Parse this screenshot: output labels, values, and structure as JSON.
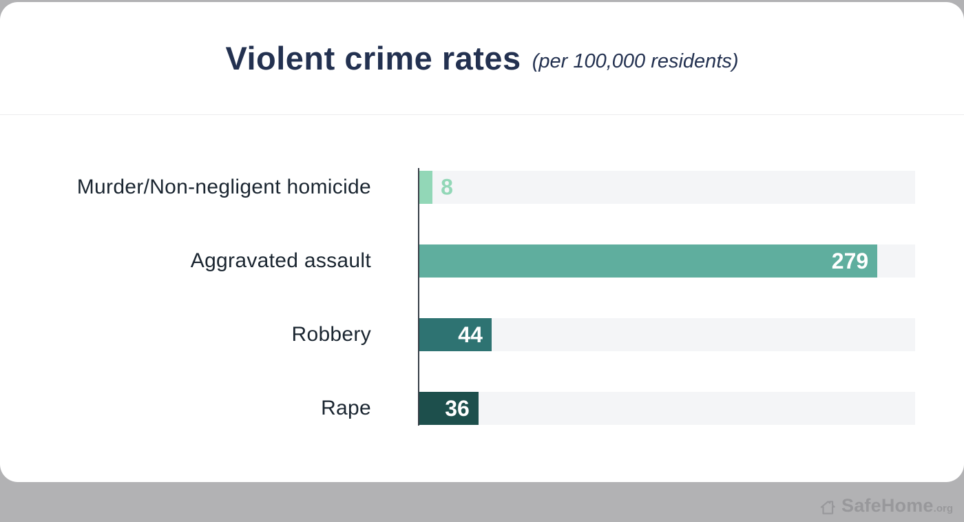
{
  "title": {
    "main": "Violent crime rates",
    "subtitle": "(per 100,000 residents)"
  },
  "chart_data": {
    "type": "bar",
    "orientation": "horizontal",
    "title": "Violent crime rates (per 100,000 residents)",
    "categories": [
      "Murder/Non-negligent homicide",
      "Aggravated assault",
      "Robbery",
      "Rape"
    ],
    "values": [
      8,
      279,
      44,
      36
    ],
    "xlim": [
      0,
      302
    ],
    "bar_colors": [
      "#92d7b7",
      "#5fae9e",
      "#2e7372",
      "#1d4f4c"
    ],
    "value_label_placement": [
      "outside",
      "inside",
      "inside",
      "inside"
    ],
    "value_label_colors": [
      "#92d7b7",
      "#ffffff",
      "#ffffff",
      "#ffffff"
    ],
    "track_color": "#f4f5f7",
    "grid": false,
    "legend": false
  },
  "footer": {
    "brand": "SafeHome",
    "suffix": ".org"
  },
  "colors": {
    "background": "#b2b2b4",
    "card": "#ffffff",
    "title": "#233150",
    "label": "#1a2530",
    "axis": "#343c44",
    "brand_gray": "#98989b"
  }
}
